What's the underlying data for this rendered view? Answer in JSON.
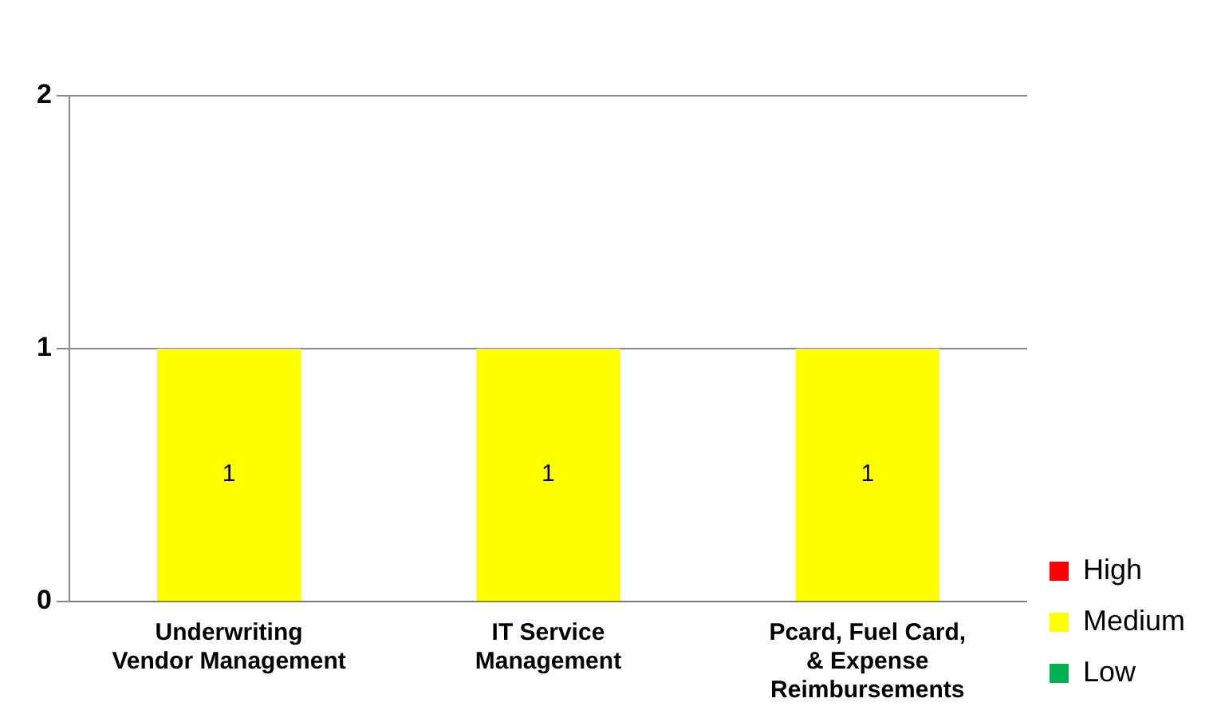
{
  "chart_data": {
    "type": "bar",
    "stacked": true,
    "categories": [
      "Underwriting Vendor Management",
      "IT Service Management",
      "Pcard, Fuel Card, & Expense Reimbursements"
    ],
    "series": [
      {
        "name": "High",
        "color": "#ff0000",
        "values": [
          null,
          null,
          null
        ]
      },
      {
        "name": "Medium",
        "color": "#ffff00",
        "values": [
          1,
          1,
          1
        ]
      },
      {
        "name": "Low",
        "color": "#00b050",
        "values": [
          null,
          null,
          null
        ]
      }
    ],
    "ylim": [
      0,
      2
    ],
    "yticks": [
      0,
      1,
      2
    ],
    "grid": "y",
    "legend": "right",
    "data_labels": true
  }
}
